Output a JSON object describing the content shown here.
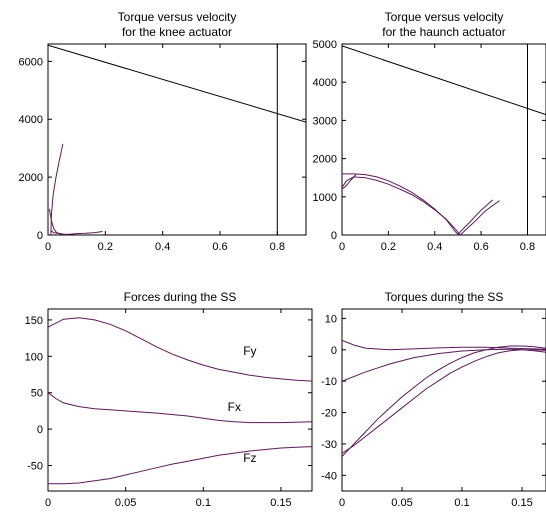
{
  "chart_data": [
    {
      "type": "line",
      "title": [
        "Torque versus velocity",
        "for the knee actuator"
      ],
      "xlabel": "",
      "ylabel": "",
      "xlim": [
        0,
        0.9
      ],
      "ylim": [
        0,
        6600
      ],
      "xticks": [
        0,
        0.2,
        0.4,
        0.6,
        0.8
      ],
      "xtick_labels": [
        "0",
        "0.2",
        "0.4",
        "0.6",
        "0.8"
      ],
      "yticks": [
        0,
        2000,
        4000,
        6000
      ],
      "ytick_labels": [
        "0",
        "2000",
        "4000",
        "6000"
      ],
      "grid": false,
      "series": [
        {
          "color": "#000000",
          "points": [
            [
              0,
              6560
            ],
            [
              0.9,
              3900
            ]
          ]
        },
        {
          "color": "#000000",
          "points": [
            [
              0.8,
              0
            ],
            [
              0.8,
              6600
            ]
          ]
        },
        {
          "color": "#5a1a5a",
          "points": [
            [
              0.01,
              0
            ],
            [
              0.012,
              700
            ],
            [
              0.018,
              1400
            ],
            [
              0.028,
              2000
            ],
            [
              0.04,
              2600
            ],
            [
              0.052,
              3150
            ]
          ]
        },
        {
          "color": "#5a1a5a",
          "points": [
            [
              0.01,
              150
            ],
            [
              0.02,
              80
            ],
            [
              0.04,
              40
            ],
            [
              0.06,
              20
            ],
            [
              0.08,
              30
            ],
            [
              0.1,
              50
            ],
            [
              0.13,
              60
            ],
            [
              0.16,
              80
            ],
            [
              0.19,
              120
            ]
          ]
        },
        {
          "color": "#5a1a5a",
          "points": [
            [
              0.005,
              900
            ],
            [
              0.012,
              500
            ],
            [
              0.02,
              220
            ],
            [
              0.03,
              80
            ],
            [
              0.05,
              30
            ]
          ]
        }
      ]
    },
    {
      "type": "line",
      "title": [
        "Torque versus velocity",
        "for the haunch actuator"
      ],
      "xlabel": "",
      "ylabel": "",
      "xlim": [
        0,
        0.88
      ],
      "ylim": [
        0,
        5000
      ],
      "xticks": [
        0,
        0.2,
        0.4,
        0.6,
        0.8
      ],
      "xtick_labels": [
        "0",
        "0.2",
        "0.4",
        "0.6",
        "0.8"
      ],
      "yticks": [
        0,
        1000,
        2000,
        3000,
        4000,
        5000
      ],
      "ytick_labels": [
        "0",
        "1000",
        "2000",
        "3000",
        "4000",
        "5000"
      ],
      "grid": false,
      "series": [
        {
          "color": "#000000",
          "points": [
            [
              0,
              4950
            ],
            [
              0.88,
              3150
            ]
          ]
        },
        {
          "color": "#000000",
          "points": [
            [
              0.8,
              0
            ],
            [
              0.8,
              5000
            ]
          ]
        },
        {
          "color": "#5a1a5a",
          "points": [
            [
              0,
              1600
            ],
            [
              0.05,
              1600
            ],
            [
              0.1,
              1580
            ],
            [
              0.15,
              1520
            ],
            [
              0.2,
              1420
            ],
            [
              0.25,
              1280
            ],
            [
              0.3,
              1120
            ],
            [
              0.35,
              920
            ],
            [
              0.4,
              680
            ],
            [
              0.45,
              400
            ],
            [
              0.49,
              80
            ],
            [
              0.5,
              20
            ],
            [
              0.55,
              330
            ],
            [
              0.6,
              650
            ],
            [
              0.65,
              920
            ]
          ]
        },
        {
          "color": "#5a1a5a",
          "points": [
            [
              0,
              1250
            ],
            [
              0.02,
              1420
            ],
            [
              0.05,
              1520
            ],
            [
              0.1,
              1500
            ],
            [
              0.15,
              1430
            ],
            [
              0.2,
              1330
            ],
            [
              0.25,
              1200
            ],
            [
              0.3,
              1060
            ],
            [
              0.35,
              880
            ],
            [
              0.4,
              660
            ],
            [
              0.45,
              410
            ],
            [
              0.49,
              150
            ],
            [
              0.51,
              0
            ],
            [
              0.56,
              280
            ],
            [
              0.62,
              640
            ],
            [
              0.68,
              900
            ]
          ]
        },
        {
          "color": "#5a1a5a",
          "points": [
            [
              0.06,
              1580
            ],
            [
              0.04,
              1450
            ],
            [
              0.02,
              1300
            ],
            [
              0.0,
              1200
            ]
          ]
        }
      ]
    },
    {
      "type": "line",
      "title": [
        "Forces during the SS"
      ],
      "xlabel": "",
      "ylabel": "",
      "xlim": [
        0,
        0.17
      ],
      "ylim": [
        -85,
        165
      ],
      "xticks": [
        0,
        0.05,
        0.1,
        0.15
      ],
      "xtick_labels": [
        "0",
        "0.05",
        "0.1",
        "0.15"
      ],
      "yticks": [
        -50,
        0,
        50,
        100,
        150
      ],
      "ytick_labels": [
        "-50",
        "0",
        "50",
        "100",
        "150"
      ],
      "grid": false,
      "annotations": [
        {
          "text": "Fy",
          "x": 0.13,
          "y": 102
        },
        {
          "text": "Fx",
          "x": 0.12,
          "y": 25
        },
        {
          "text": "Fz",
          "x": 0.13,
          "y": -45
        }
      ],
      "series": [
        {
          "name": "Fy",
          "color": "#5a1a5a",
          "points": [
            [
              0,
              140
            ],
            [
              0.01,
              151
            ],
            [
              0.02,
              153
            ],
            [
              0.03,
              150
            ],
            [
              0.04,
              144
            ],
            [
              0.05,
              135
            ],
            [
              0.06,
              124
            ],
            [
              0.07,
              113
            ],
            [
              0.08,
              103
            ],
            [
              0.09,
              95
            ],
            [
              0.1,
              88
            ],
            [
              0.11,
              82
            ],
            [
              0.12,
              78
            ],
            [
              0.13,
              74
            ],
            [
              0.14,
              71
            ],
            [
              0.15,
              69
            ],
            [
              0.16,
              67
            ],
            [
              0.17,
              66
            ]
          ]
        },
        {
          "name": "Fx",
          "color": "#5a1a5a",
          "points": [
            [
              0,
              50
            ],
            [
              0.005,
              42
            ],
            [
              0.01,
              36
            ],
            [
              0.02,
              31
            ],
            [
              0.03,
              28
            ],
            [
              0.05,
              25
            ],
            [
              0.07,
              22
            ],
            [
              0.09,
              18
            ],
            [
              0.1,
              15
            ],
            [
              0.11,
              12
            ],
            [
              0.12,
              10
            ],
            [
              0.13,
              9
            ],
            [
              0.15,
              9
            ],
            [
              0.17,
              10
            ]
          ]
        },
        {
          "name": "Fz",
          "color": "#5a1a5a",
          "points": [
            [
              0,
              -75
            ],
            [
              0.01,
              -75
            ],
            [
              0.02,
              -74
            ],
            [
              0.03,
              -71
            ],
            [
              0.04,
              -68
            ],
            [
              0.05,
              -63
            ],
            [
              0.06,
              -58
            ],
            [
              0.07,
              -53
            ],
            [
              0.08,
              -48
            ],
            [
              0.09,
              -44
            ],
            [
              0.1,
              -40
            ],
            [
              0.11,
              -36
            ],
            [
              0.12,
              -33
            ],
            [
              0.13,
              -30
            ],
            [
              0.14,
              -28
            ],
            [
              0.15,
              -26
            ],
            [
              0.16,
              -25
            ],
            [
              0.17,
              -24
            ]
          ]
        }
      ]
    },
    {
      "type": "line",
      "title": [
        "Torques during the SS"
      ],
      "xlabel": "",
      "ylabel": "",
      "xlim": [
        0,
        0.17
      ],
      "ylim": [
        -45,
        13
      ],
      "xticks": [
        0,
        0.05,
        0.1,
        0.15
      ],
      "xtick_labels": [
        "0",
        "0.05",
        "0.1",
        "0.15"
      ],
      "yticks": [
        -40,
        -30,
        -20,
        -10,
        0,
        10
      ],
      "ytick_labels": [
        "-40",
        "-30",
        "-20",
        "-10",
        "0",
        "10"
      ],
      "grid": false,
      "series": [
        {
          "color": "#5a1a5a",
          "points": [
            [
              0,
              3
            ],
            [
              0.01,
              1.5
            ],
            [
              0.02,
              0.5
            ],
            [
              0.04,
              0
            ],
            [
              0.06,
              0.3
            ],
            [
              0.08,
              0.6
            ],
            [
              0.1,
              0.8
            ],
            [
              0.12,
              0.8
            ],
            [
              0.14,
              0.5
            ],
            [
              0.16,
              0.3
            ],
            [
              0.17,
              0.2
            ]
          ]
        },
        {
          "color": "#5a1a5a",
          "points": [
            [
              0,
              -10
            ],
            [
              0.02,
              -7
            ],
            [
              0.04,
              -4.5
            ],
            [
              0.06,
              -2.5
            ],
            [
              0.08,
              -1.2
            ],
            [
              0.1,
              -0.4
            ],
            [
              0.12,
              0
            ],
            [
              0.14,
              0.2
            ],
            [
              0.15,
              0
            ],
            [
              0.16,
              -0.3
            ],
            [
              0.17,
              -0.8
            ]
          ]
        },
        {
          "color": "#5a1a5a",
          "points": [
            [
              0,
              -34
            ],
            [
              0.01,
              -30
            ],
            [
              0.02,
              -26
            ],
            [
              0.03,
              -22
            ],
            [
              0.04,
              -18.5
            ],
            [
              0.05,
              -15
            ],
            [
              0.06,
              -12
            ],
            [
              0.07,
              -9
            ],
            [
              0.08,
              -6.5
            ],
            [
              0.09,
              -4.3
            ],
            [
              0.1,
              -2.5
            ],
            [
              0.11,
              -1
            ],
            [
              0.12,
              0
            ],
            [
              0.13,
              0.8
            ],
            [
              0.14,
              1.2
            ],
            [
              0.15,
              1.2
            ],
            [
              0.16,
              1
            ],
            [
              0.17,
              0.5
            ]
          ]
        },
        {
          "color": "#5a1a5a",
          "points": [
            [
              0,
              -33
            ],
            [
              0.01,
              -30.5
            ],
            [
              0.02,
              -27.5
            ],
            [
              0.03,
              -24.5
            ],
            [
              0.04,
              -21.5
            ],
            [
              0.05,
              -18.5
            ],
            [
              0.06,
              -15.5
            ],
            [
              0.07,
              -12.5
            ],
            [
              0.08,
              -10
            ],
            [
              0.09,
              -7.5
            ],
            [
              0.1,
              -5.5
            ],
            [
              0.11,
              -3.7
            ],
            [
              0.12,
              -2.2
            ],
            [
              0.13,
              -1
            ],
            [
              0.14,
              -0.3
            ],
            [
              0.15,
              0
            ],
            [
              0.16,
              0
            ],
            [
              0.17,
              -0.2
            ]
          ]
        }
      ]
    }
  ]
}
